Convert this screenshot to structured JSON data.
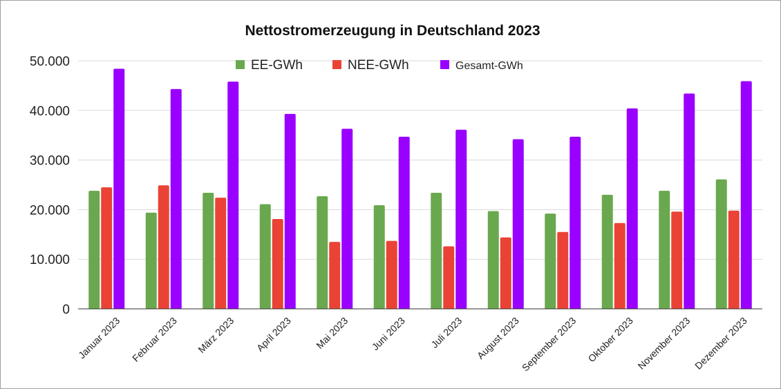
{
  "chart_data": {
    "type": "bar",
    "title": "Nettostromerzeugung in Deutschland 2023",
    "xlabel": "",
    "ylabel": "",
    "ylim": [
      0,
      50000
    ],
    "yticks": [
      0,
      10000,
      20000,
      30000,
      40000,
      50000
    ],
    "ytick_labels": [
      "0",
      "10.000",
      "20.000",
      "30.000",
      "40.000",
      "50.000"
    ],
    "grid": true,
    "legend_position": "top",
    "categories": [
      "Januar 2023",
      "Februar 2023",
      "März 2023",
      "April 2023",
      "Mai 2023",
      "Juni 2023",
      "Juli 2023",
      "August 2023",
      "September 2023",
      "Oktober 2023",
      "November 2023",
      "Dezember 2023"
    ],
    "series": [
      {
        "name": "EE-GWh",
        "color": "#6aa84f",
        "values": [
          23800,
          19400,
          23400,
          21100,
          22700,
          20900,
          23400,
          19700,
          19200,
          23000,
          23800,
          26100
        ]
      },
      {
        "name": "NEE-GWh",
        "color": "#ea4335",
        "values": [
          24500,
          24900,
          22400,
          18100,
          13500,
          13700,
          12600,
          14400,
          15500,
          17300,
          19600,
          19800
        ]
      },
      {
        "name": "Gesamt-GWh",
        "color": "#9900ff",
        "values": [
          48400,
          44300,
          45800,
          39300,
          36300,
          34700,
          36100,
          34200,
          34700,
          40400,
          43400,
          45900
        ]
      }
    ]
  }
}
